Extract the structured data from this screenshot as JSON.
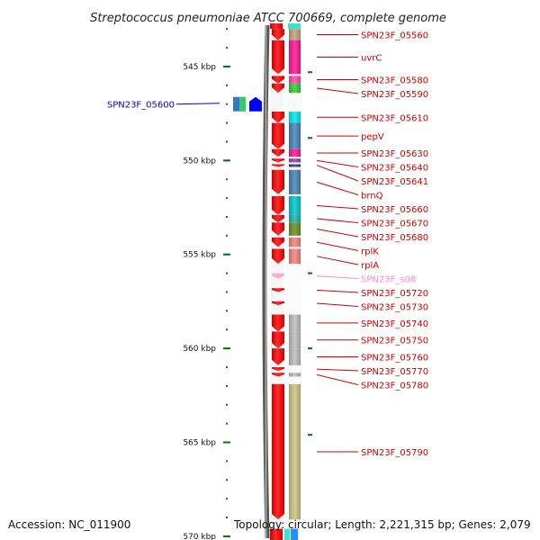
{
  "title": "Streptococcus pneumoniae ATCC 700669, complete genome",
  "footer": {
    "accession": "Accession: NC_011900",
    "summary": "Topology: circular; Length: 2,221,315 bp; Genes: 2,079"
  },
  "axis": {
    "start_kbp": 542.8,
    "end_kbp": 570.1,
    "major_ticks": [
      {
        "kbp": 545,
        "label": "545 kbp"
      },
      {
        "kbp": 550,
        "label": "550 kbp"
      },
      {
        "kbp": 555,
        "label": "555 kbp"
      },
      {
        "kbp": 560,
        "label": "560 kbp"
      },
      {
        "kbp": 565,
        "label": "565 kbp"
      },
      {
        "kbp": 570,
        "label": "570 kbp"
      }
    ]
  },
  "colors": {
    "strand_gene": "#ff0000",
    "left_label": "#0000cc",
    "right_label": "#cc0000",
    "rna_label": "#ff88cc",
    "backbone": "#888888",
    "tick": "#007700"
  },
  "left_genes": [
    {
      "name": "SPN23F_05600",
      "start_kbp": 546.8,
      "end_kbp": 547.2
    }
  ],
  "right_genes": [
    {
      "name": "SPN23F_05560",
      "start_kbp": 543.0,
      "end_kbp": 543.6,
      "cog": "#bfa080"
    },
    {
      "name": "uvrC",
      "start_kbp": 543.6,
      "end_kbp": 545.4,
      "cog": "#ff1493"
    },
    {
      "name": "SPN23F_05580",
      "start_kbp": 545.5,
      "end_kbp": 545.9,
      "cog": "#ff44aa"
    },
    {
      "name": "SPN23F_05590",
      "start_kbp": 545.9,
      "end_kbp": 546.4,
      "cog": "#33cc33"
    },
    {
      "name": "SPN23F_05610",
      "start_kbp": 547.4,
      "end_kbp": 548.0,
      "cog": "#00e5ee"
    },
    {
      "name": "pepV",
      "start_kbp": 548.0,
      "end_kbp": 549.4,
      "cog": "#4682b4"
    },
    {
      "name": "SPN23F_05630",
      "start_kbp": 549.4,
      "end_kbp": 549.8,
      "cog": "#ff1493"
    },
    {
      "name": "SPN23F_05640",
      "start_kbp": 549.9,
      "end_kbp": 550.1,
      "cog": "#8844aa"
    },
    {
      "name": "SPN23F_05641",
      "start_kbp": 550.2,
      "end_kbp": 550.3,
      "cog": "#333399"
    },
    {
      "name": "brnQ",
      "start_kbp": 550.5,
      "end_kbp": 551.8,
      "cog": "#4682b4"
    },
    {
      "name": "SPN23F_05660",
      "start_kbp": 551.9,
      "end_kbp": 552.9,
      "cog": "#00c5cd"
    },
    {
      "name": "SPN23F_05670",
      "start_kbp": 552.9,
      "end_kbp": 553.3,
      "cog": "#20b2aa"
    },
    {
      "name": "SPN23F_05680",
      "start_kbp": 553.3,
      "end_kbp": 554.0,
      "cog": "#6b8e23"
    },
    {
      "name": "rplK",
      "start_kbp": 554.1,
      "end_kbp": 554.6,
      "cog": "#f08080"
    },
    {
      "name": "rplA",
      "start_kbp": 554.7,
      "end_kbp": 555.5,
      "cog": "#f08080"
    },
    {
      "name": "SPN23F_s08",
      "start_kbp": 556.0,
      "end_kbp": 556.3,
      "cog": "",
      "rna": true
    },
    {
      "name": "SPN23F_05720",
      "start_kbp": 556.8,
      "end_kbp": 557.0,
      "cog": ""
    },
    {
      "name": "SPN23F_05730",
      "start_kbp": 557.5,
      "end_kbp": 557.7,
      "cog": ""
    },
    {
      "name": "SPN23F_05740",
      "start_kbp": 558.2,
      "end_kbp": 559.1,
      "cog": "#bbbbbb"
    },
    {
      "name": "SPN23F_05750",
      "start_kbp": 559.1,
      "end_kbp": 560.0,
      "cog": "#bbbbbb"
    },
    {
      "name": "SPN23F_05760",
      "start_kbp": 560.0,
      "end_kbp": 560.9,
      "cog": "#bbbbbb"
    },
    {
      "name": "SPN23F_05770",
      "start_kbp": 561.0,
      "end_kbp": 561.2,
      "cog": ""
    },
    {
      "name": "SPN23F_05780",
      "start_kbp": 561.3,
      "end_kbp": 561.5,
      "cog": "#bbbbbb"
    },
    {
      "name": "SPN23F_05790",
      "start_kbp": 561.9,
      "end_kbp": 569.1,
      "cog": "#c8c080"
    }
  ]
}
